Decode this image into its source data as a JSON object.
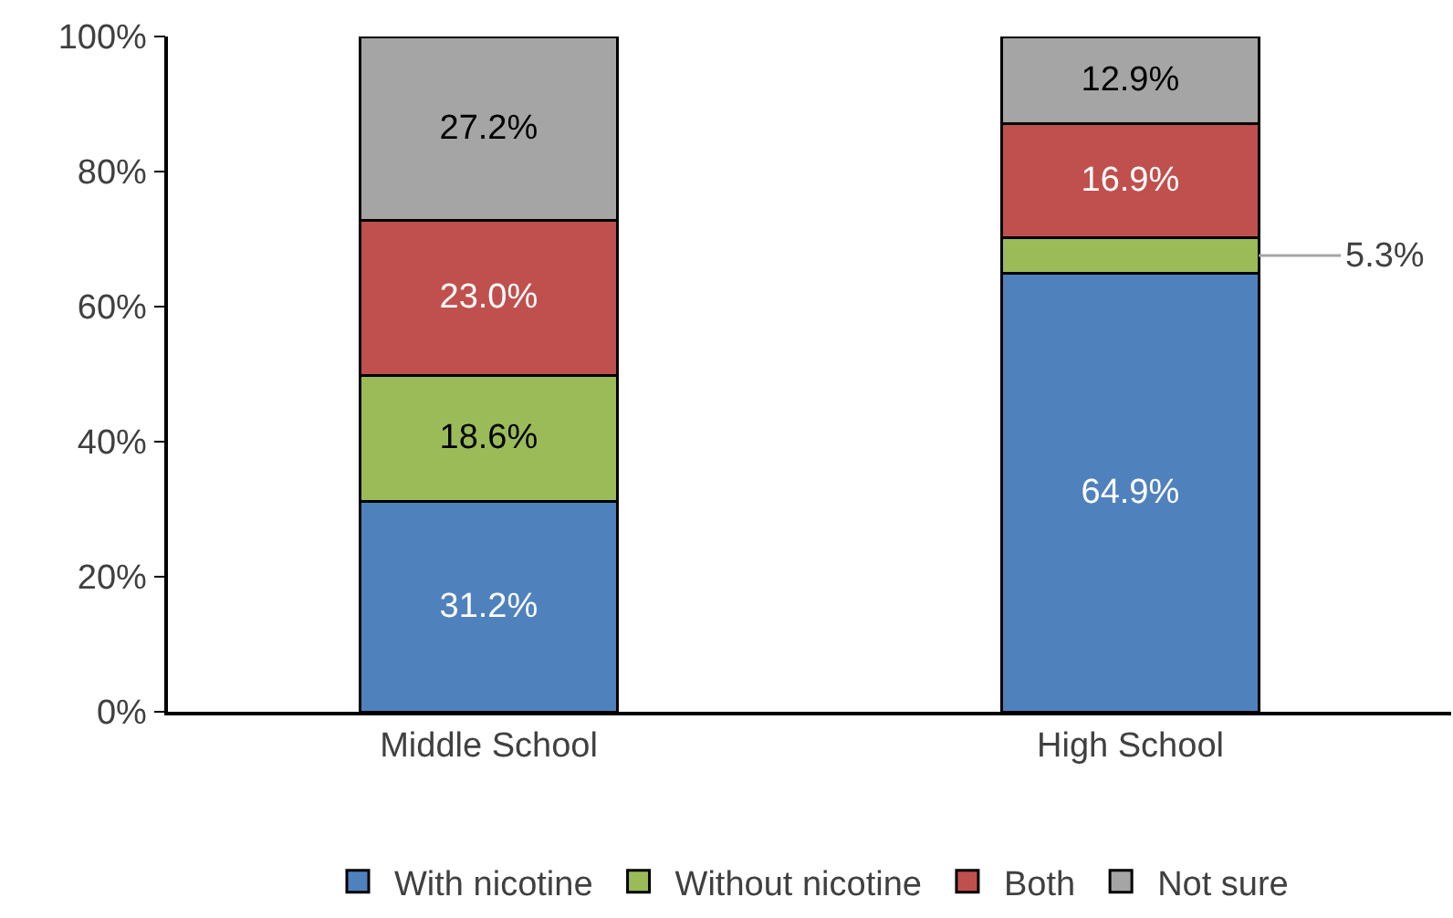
{
  "chart_data": {
    "type": "bar",
    "stacked": true,
    "categories": [
      "Middle School",
      "High School"
    ],
    "series": [
      {
        "name": "With nicotine",
        "color": "#4f81bd",
        "values": [
          31.2,
          64.9
        ],
        "value_labels": [
          "31.2%",
          "64.9%"
        ]
      },
      {
        "name": "Without nicotine",
        "color": "#9bbb59",
        "values": [
          18.6,
          5.3
        ],
        "value_labels": [
          "18.6%",
          "5.3%"
        ]
      },
      {
        "name": "Both",
        "color": "#c0504d",
        "values": [
          23.0,
          16.9
        ],
        "value_labels": [
          "23.0%",
          "16.9%"
        ]
      },
      {
        "name": "Not sure",
        "color": "#a5a5a5",
        "values": [
          27.2,
          12.9
        ],
        "value_labels": [
          "27.2%",
          "12.9%"
        ]
      }
    ],
    "ylim": [
      0,
      100
    ],
    "yticks": [
      {
        "value": 0,
        "label": "0%"
      },
      {
        "value": 20,
        "label": "20%"
      },
      {
        "value": 40,
        "label": "40%"
      },
      {
        "value": 60,
        "label": "60%"
      },
      {
        "value": 80,
        "label": "80%"
      },
      {
        "value": 100,
        "label": "100%"
      }
    ],
    "legend": "bottom"
  }
}
